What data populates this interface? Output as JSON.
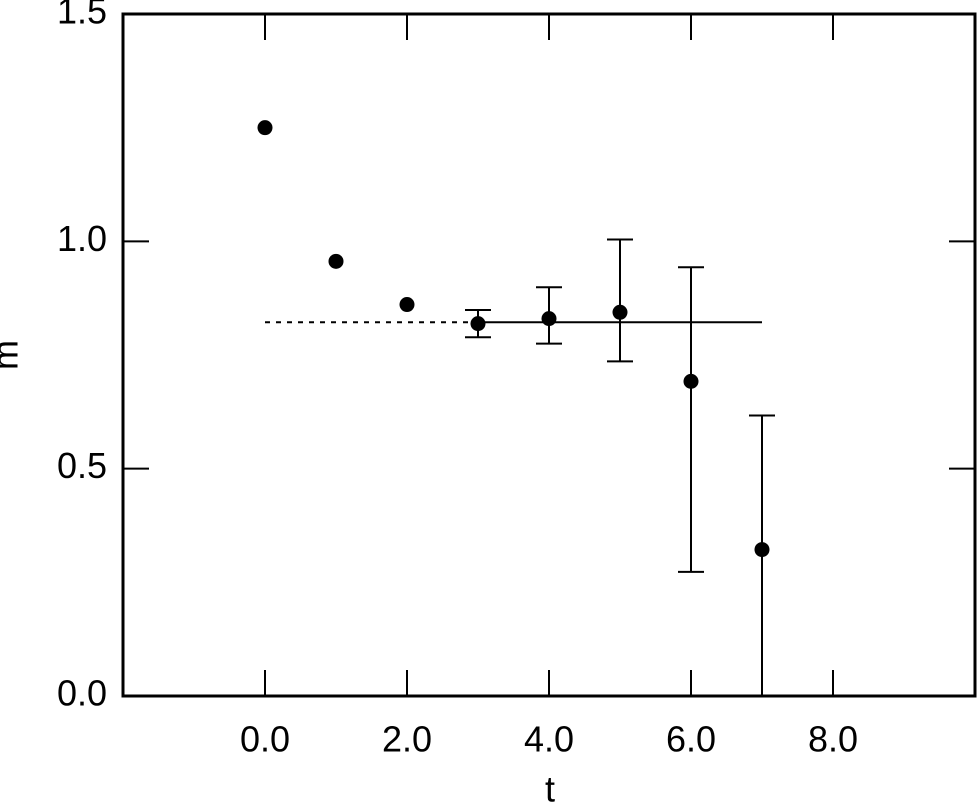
{
  "chart_data": {
    "type": "scatter",
    "x_label": "t",
    "y_label": "m",
    "xlim": [
      -2,
      10
    ],
    "ylim": [
      0,
      1.5
    ],
    "xticks": [
      {
        "value": 0,
        "label": "0.0"
      },
      {
        "value": 2,
        "label": "2.0"
      },
      {
        "value": 4,
        "label": "4.0"
      },
      {
        "value": 6,
        "label": "6.0"
      },
      {
        "value": 8,
        "label": "8.0"
      }
    ],
    "yticks": [
      {
        "value": 0,
        "label": "0.0"
      },
      {
        "value": 0.5,
        "label": "0.5"
      },
      {
        "value": 1,
        "label": "1.0"
      },
      {
        "value": 1.5,
        "label": "1.5"
      }
    ],
    "color": "#000000",
    "x": [
      0,
      1,
      2,
      3,
      4,
      5,
      6,
      7
    ],
    "values": [
      1.25,
      0.956,
      0.861,
      0.819,
      0.83,
      0.844,
      0.692,
      0.322
    ],
    "yerr_low": [
      null,
      null,
      null,
      0.03,
      0.055,
      0.108,
      0.419,
      0.35
    ],
    "yerr_high": [
      null,
      null,
      null,
      0.03,
      0.069,
      0.16,
      0.251,
      0.295
    ],
    "fit": {
      "value": 0.822,
      "x_dotted": [
        0,
        3
      ],
      "x_solid": [
        3,
        7
      ]
    }
  }
}
